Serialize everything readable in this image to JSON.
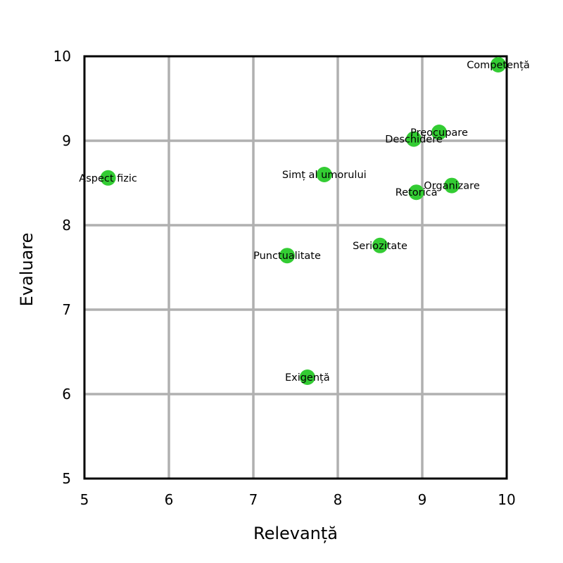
{
  "chart_data": {
    "type": "scatter",
    "xlabel": "Relevanță",
    "ylabel": "Evaluare",
    "xlim": [
      5,
      10
    ],
    "ylim": [
      5,
      10
    ],
    "xticks": [
      "5",
      "6",
      "7",
      "8",
      "9",
      "10"
    ],
    "yticks": [
      "5",
      "6",
      "7",
      "8",
      "9",
      "10"
    ],
    "grid": true,
    "point_color": "#33cc33",
    "grid_color": "#b0b0b0",
    "points": [
      {
        "label": "Competență",
        "x": 9.9,
        "y": 9.9
      },
      {
        "label": "Preocupare",
        "x": 9.2,
        "y": 9.1
      },
      {
        "label": "Deschidere",
        "x": 8.9,
        "y": 9.02
      },
      {
        "label": "Aspect fizic",
        "x": 5.28,
        "y": 8.56
      },
      {
        "label": "Simț al umorului",
        "x": 7.84,
        "y": 8.6
      },
      {
        "label": "Organizare",
        "x": 9.35,
        "y": 8.47
      },
      {
        "label": "Retorică",
        "x": 8.93,
        "y": 8.39
      },
      {
        "label": "Seriozitate",
        "x": 8.5,
        "y": 7.76
      },
      {
        "label": "Punctualitate",
        "x": 7.4,
        "y": 7.64
      },
      {
        "label": "Exigență",
        "x": 7.64,
        "y": 6.2
      }
    ]
  }
}
